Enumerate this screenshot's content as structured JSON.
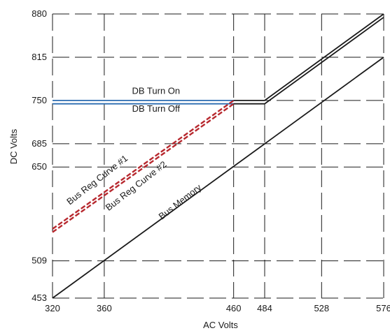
{
  "chart_data": {
    "type": "line",
    "title": "",
    "xlabel": "AC Volts",
    "ylabel": "DC Volts",
    "xlim": [
      320,
      576
    ],
    "ylim": [
      453,
      880
    ],
    "x_ticks": [
      320,
      360,
      460,
      484,
      528,
      576
    ],
    "y_ticks": [
      453,
      509,
      650,
      685,
      750,
      815,
      880
    ],
    "grid": true,
    "series": [
      {
        "label": "DB Turn On",
        "color": "#2b6cb0",
        "x": [
          320,
          460
        ],
        "y": [
          750,
          750
        ]
      },
      {
        "label": "DB Turn Off",
        "color": "#2b6cb0",
        "x": [
          320,
          460
        ],
        "y": [
          745,
          745
        ]
      },
      {
        "label": "Bus Reg Curve #1",
        "color": "#b7282e",
        "x": [
          320,
          460
        ],
        "y": [
          557,
          750
        ]
      },
      {
        "label": "Bus Reg Curve #2",
        "color": "#b7282e",
        "x": [
          320,
          460
        ],
        "y": [
          552,
          745
        ]
      },
      {
        "label": "",
        "color": "#1a1a1a",
        "x": [
          460,
          484,
          576
        ],
        "y": [
          750,
          750,
          880
        ]
      },
      {
        "label": "",
        "color": "#1a1a1a",
        "x": [
          460,
          484,
          576
        ],
        "y": [
          745,
          745,
          875
        ]
      },
      {
        "label": "Bus Memory",
        "color": "#1a1a1a",
        "x": [
          320,
          576
        ],
        "y": [
          453,
          815
        ]
      }
    ],
    "annotations": [
      {
        "text": "DB Turn On",
        "x": 400,
        "y": 760,
        "angle": 0
      },
      {
        "text": "DB Turn Off",
        "x": 400,
        "y": 733,
        "angle": 0
      },
      {
        "text": "Bus Reg Curve #1",
        "x": 356,
        "y": 627,
        "angle": -38
      },
      {
        "text": "Bus Reg Curve #2",
        "x": 386,
        "y": 618,
        "angle": -38
      },
      {
        "text": "Bus Memory",
        "x": 420,
        "y": 594,
        "angle": -38
      }
    ]
  },
  "colors": {
    "grid": "#1a1a1a",
    "db": "#2b6cb0",
    "bus_reg": "#b7282e",
    "memory": "#1a1a1a"
  }
}
